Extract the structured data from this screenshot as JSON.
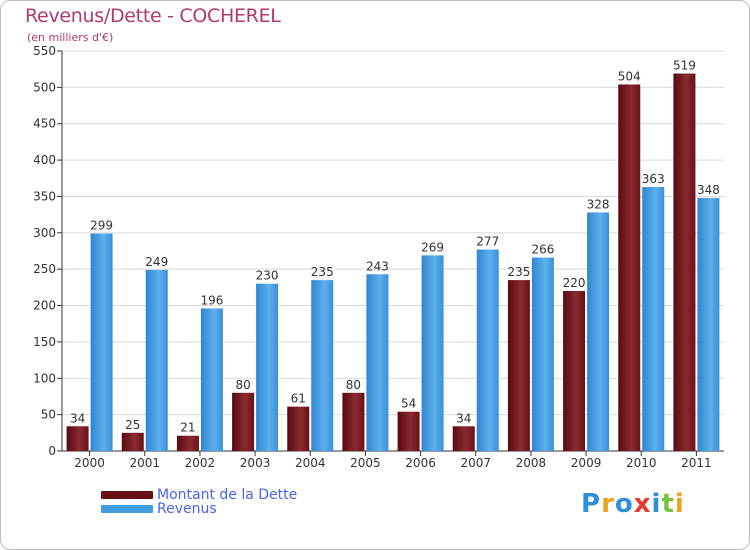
{
  "chart_data": {
    "type": "bar",
    "title": "Revenus/Dette - COCHEREL",
    "subtitle": "(en milliers d'€)",
    "categories": [
      "2000",
      "2001",
      "2002",
      "2003",
      "2004",
      "2005",
      "2006",
      "2007",
      "2008",
      "2009",
      "2010",
      "2011"
    ],
    "series": [
      {
        "name": "Montant de la Dette",
        "values": [
          34,
          25,
          21,
          80,
          61,
          80,
          54,
          34,
          235,
          220,
          504,
          519
        ],
        "color": "#6b0f16"
      },
      {
        "name": "Revenus",
        "values": [
          299,
          249,
          196,
          230,
          235,
          243,
          269,
          277,
          266,
          328,
          363,
          348
        ],
        "color": "#3f9de0"
      }
    ],
    "ylim": [
      0,
      550
    ],
    "yticks": [
      0,
      50,
      100,
      150,
      200,
      250,
      300,
      350,
      400,
      450,
      500,
      550
    ],
    "grid": true,
    "legend_position": "bottom-left"
  },
  "logo": {
    "letters": [
      {
        "char": "P",
        "color": "#2f8fd8"
      },
      {
        "char": "r",
        "color": "#f0a020"
      },
      {
        "char": "o",
        "color": "#2f8fd8"
      },
      {
        "char": "x",
        "color": "#e23b2e"
      },
      {
        "char": "i",
        "color": "#2f8fd8"
      },
      {
        "char": "t",
        "color": "#7cc242"
      },
      {
        "char": "i",
        "color": "#f0a020"
      }
    ]
  }
}
